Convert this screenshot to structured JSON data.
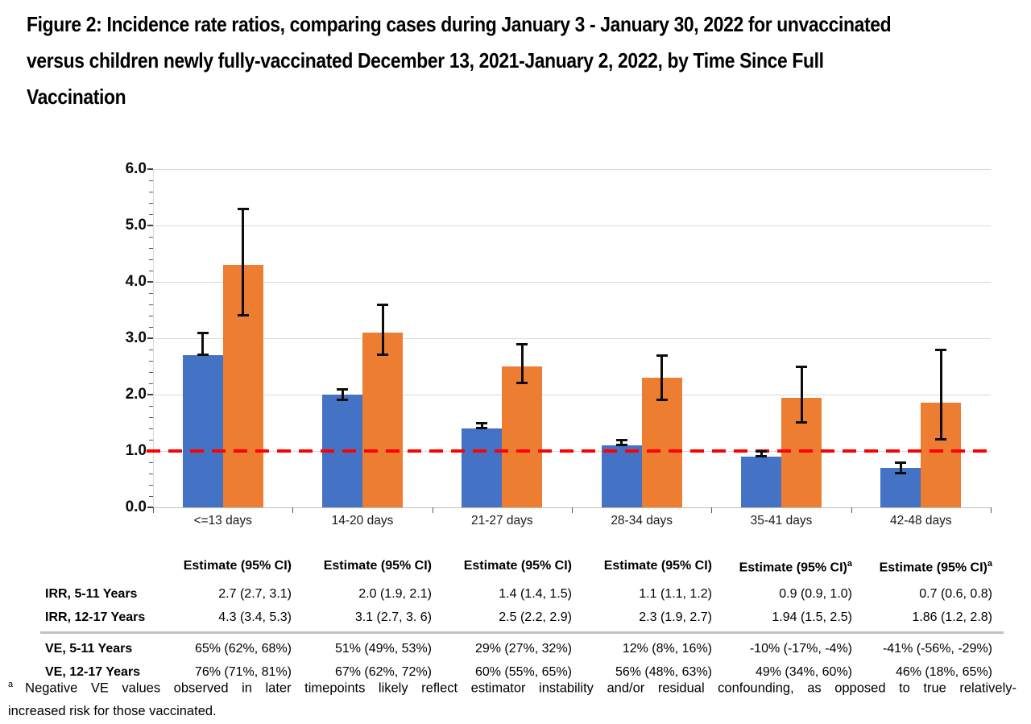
{
  "figure_title": {
    "full": "Figure 2:  Incidence rate ratios, comparing cases during January 3 - January 30, 2022 for unvaccinated versus children newly fully-vaccinated December 13, 2021-January 2, 2022, by Time Since Full Vaccination",
    "lines": [
      "Figure 2:  Incidence rate ratios, comparing cases during January 3 - January 30, 2022 for unvaccinated",
      "versus children newly fully-vaccinated December 13, 2021-January 2, 2022, by Time Since Full",
      "Vaccination"
    ]
  },
  "chart_data": {
    "type": "bar",
    "title": "",
    "xlabel": "",
    "ylabel": "",
    "categories": [
      "<=13 days",
      "14-20 days",
      "21-27 days",
      "28-34 days",
      "35-41 days",
      "42-48 days"
    ],
    "series": [
      {
        "name": "IRR, 5-11 Years",
        "color": "#4472C4",
        "values": [
          2.7,
          2.0,
          1.4,
          1.1,
          0.9,
          0.7
        ],
        "ci_low": [
          2.7,
          1.9,
          1.4,
          1.1,
          0.9,
          0.6
        ],
        "ci_high": [
          3.1,
          2.1,
          1.5,
          1.2,
          1.0,
          0.8
        ]
      },
      {
        "name": "IRR, 12-17 Years",
        "color": "#ED7D31",
        "values": [
          4.3,
          3.1,
          2.5,
          2.3,
          1.94,
          1.86
        ],
        "ci_low": [
          3.4,
          2.7,
          2.2,
          1.9,
          1.5,
          1.2
        ],
        "ci_high": [
          5.3,
          3.6,
          2.9,
          2.7,
          2.5,
          2.8
        ]
      }
    ],
    "ylim": [
      0,
      6
    ],
    "ytick_labels": [
      "0.0",
      "1.0",
      "2.0",
      "3.0",
      "4.0",
      "5.0",
      "6.0"
    ],
    "minor_tick_step": 0.2,
    "grid": true,
    "legend": "none",
    "error_bars": true,
    "reference_line": {
      "y": 1.0,
      "style": "dashed",
      "color": "#FF0000"
    }
  },
  "colors": {
    "bar_5_11": "#4472C4",
    "bar_12_17": "#ED7D31",
    "reference_line": "#FF0000",
    "gridline": "#D9D9D9",
    "error_bar": "#0d0d0d"
  },
  "table": {
    "corner_label": "",
    "column_headers": [
      {
        "text": "Estimate (95% CI)",
        "sup": ""
      },
      {
        "text": "Estimate (95% CI)",
        "sup": ""
      },
      {
        "text": "Estimate (95% CI)",
        "sup": ""
      },
      {
        "text": "Estimate (95% CI)",
        "sup": ""
      },
      {
        "text": "Estimate (95% CI)",
        "sup": "a"
      },
      {
        "text": "Estimate (95% CI)",
        "sup": "a"
      }
    ],
    "rows": [
      {
        "label": "IRR, 5-11 Years",
        "cells": [
          "2.7 (2.7, 3.1)",
          "2.0 (1.9, 2.1)",
          "1.4 (1.4, 1.5)",
          "1.1 (1.1, 1.2)",
          "0.9 (0.9, 1.0)",
          "0.7 (0.6, 0.8)"
        ]
      },
      {
        "label": "IRR, 12-17 Years",
        "cells": [
          "4.3 (3.4, 5.3)",
          "3.1 (2.7, 3. 6)",
          "2.5 (2.2, 2.9)",
          "2.3 (1.9, 2.7)",
          "1.94 (1.5, 2.5)",
          "1.86 (1.2, 2.8)"
        ]
      },
      {
        "label": "VE, 5-11 Years",
        "cells": [
          "65% (62%, 68%)",
          "51% (49%, 53%)",
          "29% (27%, 32%)",
          "12% (8%, 16%)",
          "-10% (-17%, -4%)",
          "-41% (-56%, -29%)"
        ]
      },
      {
        "label": "VE, 12-17 Years",
        "cells": [
          "76% (71%, 81%)",
          "67% (62%, 72%)",
          "60% (55%, 65%)",
          "56% (48%, 63%)",
          "49% (34%, 60%)",
          "46% (18%, 65%)"
        ]
      }
    ],
    "separator_after_row": 1
  },
  "footnote": {
    "marker": "a",
    "text": "Negative VE values observed in later timepoints likely reflect estimator instability and/or residual confounding, as opposed to true relatively-increased risk for those vaccinated.",
    "lines": [
      "Negative VE values observed in later timepoints likely reflect estimator instability and/or residual confounding, as opposed to true relatively-",
      "increased risk for those vaccinated."
    ]
  }
}
